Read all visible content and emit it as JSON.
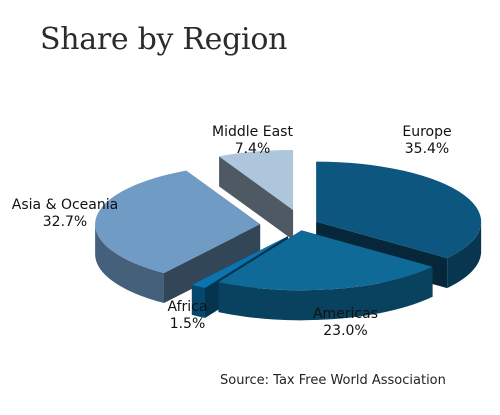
{
  "chart_data": {
    "type": "pie",
    "title": "Share by Region",
    "source": "Source: Tax Free World Association",
    "slices": [
      {
        "label": "Europe",
        "value": 35.4,
        "display": "35.4%",
        "color": "#0d5680"
      },
      {
        "label": "Americas",
        "value": 23.0,
        "display": "23.0%",
        "color": "#0f6a98"
      },
      {
        "label": "Africa",
        "value": 1.5,
        "display": "1.5%",
        "color": "#0a73b0"
      },
      {
        "label": "Asia & Oceania",
        "value": 32.7,
        "display": "32.7%",
        "color": "#6f9bc4"
      },
      {
        "label": "Middle East",
        "value": 7.4,
        "display": "7.4%",
        "color": "#aec6dc"
      }
    ]
  }
}
